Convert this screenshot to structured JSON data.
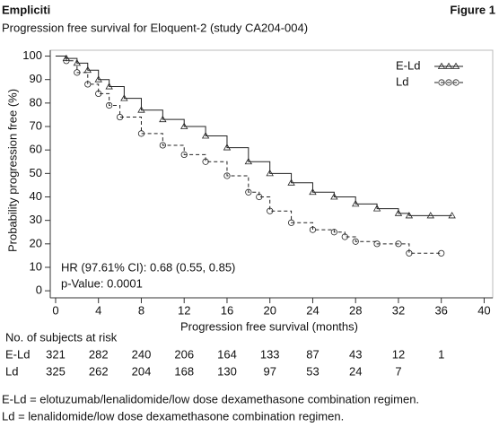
{
  "header": {
    "brand": "Empliciti",
    "figure": "Figure 1"
  },
  "chart_data": {
    "type": "line",
    "step": true,
    "title": "Progression free survival for Eloquent-2 (study CA204-004)",
    "x_label": "Progression free survival (months)",
    "y_label": "Probability progression free (%)",
    "xlim": [
      -0.5,
      40.8
    ],
    "ylim": [
      -3,
      102.5
    ],
    "xticks": [
      0,
      4,
      8,
      12,
      16,
      20,
      24,
      28,
      32,
      36,
      40
    ],
    "yticks": [
      0,
      10,
      20,
      30,
      40,
      50,
      60,
      70,
      80,
      90,
      100
    ],
    "legend": "top-right",
    "annotations": [
      "HR (97.61% CI): 0.68 (0.55, 0.85)",
      "p-Value: 0.0001"
    ],
    "series": [
      {
        "name": "E-Ld",
        "color": "#222222",
        "line_style": "solid",
        "marker": "triangle",
        "x": [
          0,
          1,
          2,
          3,
          4,
          5,
          6.4,
          8,
          10,
          12,
          14,
          16,
          18,
          20,
          22,
          24,
          26,
          28,
          30,
          32,
          33,
          35,
          37
        ],
        "values": [
          100,
          99,
          97,
          94,
          90,
          87,
          82,
          77,
          73,
          70,
          66,
          61,
          55,
          50,
          46,
          42,
          40,
          37,
          35,
          33,
          32,
          32,
          32
        ]
      },
      {
        "name": "Ld",
        "color": "#222222",
        "line_style": "dashed",
        "marker": "circle",
        "x": [
          0,
          1,
          2,
          3,
          4,
          5,
          6,
          8,
          10,
          12,
          14,
          16,
          18,
          19,
          20,
          22,
          24,
          26,
          27,
          28,
          30,
          32,
          33,
          36
        ],
        "values": [
          100,
          98,
          93,
          88,
          84,
          79,
          74,
          67,
          62,
          58,
          55,
          49,
          42,
          40,
          34,
          29,
          26,
          25,
          23,
          21,
          20,
          20,
          16,
          16
        ]
      }
    ],
    "risk_table": {
      "title": "No. of subjects at risk",
      "rows": [
        {
          "name": "E-Ld",
          "values": [
            321,
            282,
            240,
            206,
            164,
            133,
            87,
            43,
            12,
            1
          ]
        },
        {
          "name": "Ld",
          "values": [
            325,
            262,
            204,
            168,
            130,
            97,
            53,
            24,
            7
          ]
        }
      ]
    }
  },
  "footnotes": [
    "E-Ld = elotuzumab/lenalidomide/low dose dexamethasone combination regimen.",
    "Ld = lenalidomide/low dose dexamethasone combination regimen."
  ]
}
